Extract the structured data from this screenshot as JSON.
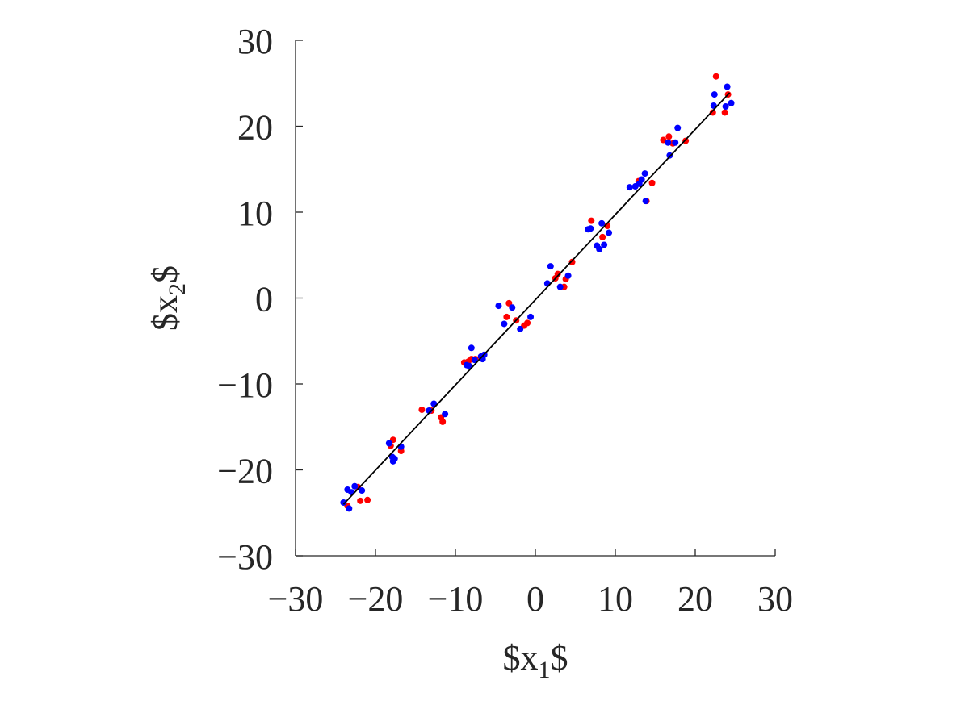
{
  "chart_data": {
    "type": "scatter",
    "title": "",
    "xlabel_parts": {
      "prefix": "$x",
      "sub": "1",
      "suffix": "$"
    },
    "ylabel_parts": {
      "prefix": "$x",
      "sub": "2",
      "suffix": "$"
    },
    "xlim": [
      -30,
      30
    ],
    "ylim": [
      -30,
      30
    ],
    "xticks": [
      -30,
      -20,
      -10,
      0,
      10,
      20,
      30
    ],
    "yticks": [
      -30,
      -20,
      -10,
      0,
      10,
      20,
      30
    ],
    "xtick_labels": [
      "−30",
      "−20",
      "−10",
      "0",
      "10",
      "20",
      "30"
    ],
    "ytick_labels": [
      "−30",
      "−20",
      "−10",
      "0",
      "10",
      "20",
      "30"
    ],
    "grid": false,
    "legend": "none",
    "colors": {
      "series_red": "#ff0000",
      "series_blue": "#0000ff",
      "fit_line": "#000000",
      "axis": "#262626"
    },
    "series": [
      {
        "color": "#ff0000",
        "points": [
          [
            -23.5,
            -24.2
          ],
          [
            -22.2,
            -22.0
          ],
          [
            -21.9,
            -23.6
          ],
          [
            -21.0,
            -23.5
          ],
          [
            -18.1,
            -17.2
          ],
          [
            -17.8,
            -16.5
          ],
          [
            -16.8,
            -17.8
          ],
          [
            -14.2,
            -13.0
          ],
          [
            -13.0,
            -13.1
          ],
          [
            -11.8,
            -13.9
          ],
          [
            -11.6,
            -14.4
          ],
          [
            -8.9,
            -7.5
          ],
          [
            -8.4,
            -7.4
          ],
          [
            -8.0,
            -7.1
          ],
          [
            -7.5,
            -7.1
          ],
          [
            -3.6,
            -2.2
          ],
          [
            -3.3,
            -0.6
          ],
          [
            -2.4,
            -2.6
          ],
          [
            -1.4,
            -3.2
          ],
          [
            -1.0,
            -2.9
          ],
          [
            2.5,
            2.3
          ],
          [
            2.8,
            2.8
          ],
          [
            3.6,
            1.3
          ],
          [
            3.8,
            2.2
          ],
          [
            4.6,
            4.2
          ],
          [
            7.0,
            9.0
          ],
          [
            8.4,
            7.1
          ],
          [
            9.0,
            8.4
          ],
          [
            12.9,
            13.6
          ],
          [
            13.9,
            11.3
          ],
          [
            14.6,
            13.4
          ],
          [
            16.0,
            18.4
          ],
          [
            16.7,
            18.8
          ],
          [
            17.2,
            18.0
          ],
          [
            18.8,
            18.3
          ],
          [
            22.2,
            21.6
          ],
          [
            22.6,
            25.8
          ],
          [
            23.7,
            21.6
          ],
          [
            24.1,
            23.7
          ]
        ]
      },
      {
        "color": "#0000ff",
        "points": [
          [
            -24.0,
            -23.8
          ],
          [
            -23.5,
            -22.3
          ],
          [
            -23.3,
            -24.5
          ],
          [
            -23.0,
            -22.6
          ],
          [
            -22.6,
            -21.9
          ],
          [
            -21.7,
            -22.4
          ],
          [
            -18.3,
            -16.9
          ],
          [
            -17.9,
            -18.5
          ],
          [
            -17.8,
            -19.0
          ],
          [
            -17.6,
            -18.7
          ],
          [
            -16.8,
            -17.3
          ],
          [
            -13.3,
            -13.1
          ],
          [
            -12.7,
            -12.3
          ],
          [
            -11.3,
            -13.5
          ],
          [
            -8.6,
            -7.8
          ],
          [
            -8.3,
            -7.9
          ],
          [
            -8.0,
            -5.8
          ],
          [
            -7.6,
            -7.2
          ],
          [
            -6.8,
            -6.8
          ],
          [
            -6.6,
            -7.1
          ],
          [
            -6.4,
            -6.6
          ],
          [
            -4.6,
            -0.9
          ],
          [
            -3.9,
            -3.0
          ],
          [
            -2.9,
            -1.1
          ],
          [
            -1.9,
            -3.6
          ],
          [
            -0.6,
            -2.2
          ],
          [
            1.5,
            1.7
          ],
          [
            1.9,
            3.7
          ],
          [
            3.1,
            1.3
          ],
          [
            4.1,
            2.6
          ],
          [
            6.6,
            8.0
          ],
          [
            6.9,
            8.1
          ],
          [
            7.7,
            6.1
          ],
          [
            8.0,
            5.7
          ],
          [
            8.3,
            8.7
          ],
          [
            8.6,
            6.2
          ],
          [
            9.2,
            7.6
          ],
          [
            11.8,
            12.9
          ],
          [
            12.5,
            13.0
          ],
          [
            13.0,
            13.3
          ],
          [
            13.3,
            13.8
          ],
          [
            13.7,
            14.5
          ],
          [
            13.8,
            11.3
          ],
          [
            16.6,
            18.1
          ],
          [
            16.8,
            16.6
          ],
          [
            17.5,
            18.1
          ],
          [
            17.8,
            19.8
          ],
          [
            22.3,
            22.4
          ],
          [
            22.4,
            23.7
          ],
          [
            23.8,
            22.3
          ],
          [
            24.0,
            24.6
          ],
          [
            24.5,
            22.7
          ]
        ]
      }
    ],
    "fit_line": {
      "x": [
        -24.0,
        24.3
      ],
      "y": [
        -24.0,
        23.9
      ]
    }
  }
}
